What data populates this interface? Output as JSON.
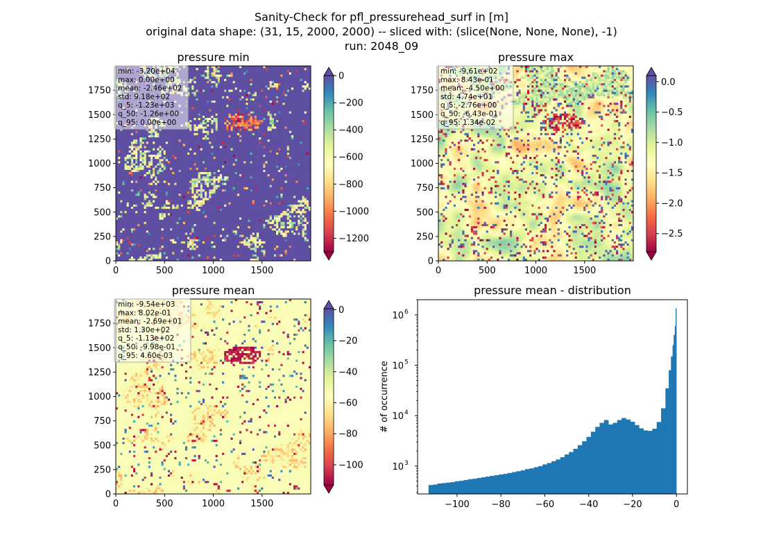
{
  "suptitle": {
    "line1": "Sanity-Check for pfl_pressurehead_surf in [m]",
    "line2": "original data shape: (31, 15, 2000, 2000) -- sliced with: (slice(None, None, None), -1)",
    "line3": "run: 2048_09"
  },
  "colormap": {
    "name": "Spectral",
    "stops": [
      "#9e0142",
      "#d53e4f",
      "#f46d43",
      "#fdae61",
      "#fee08b",
      "#ffffbf",
      "#e6f598",
      "#abdda4",
      "#66c2a5",
      "#3288bd",
      "#5e4fa2"
    ]
  },
  "panels": {
    "min": {
      "title": "pressure min",
      "stats": [
        "min: -3.20e+04",
        "max: 0.00e+00",
        "mean: -2.46e+02",
        "std: 9.18e+02",
        "q_5: -1.23e+03",
        "q_50: -1.26e+00",
        "q_95: 0.00e+00"
      ],
      "xticks": [
        "0",
        "500",
        "1000",
        "1500"
      ],
      "yticks": [
        "0",
        "250",
        "500",
        "750",
        "1000",
        "1250",
        "1500",
        "1750"
      ],
      "cbar_ticks": [
        "0",
        "−200",
        "−400",
        "−600",
        "−800",
        "−1000",
        "−1200"
      ]
    },
    "max": {
      "title": "pressure max",
      "stats": [
        "min: -9.61e+02",
        "max: 8.43e-01",
        "mean: -4.50e+00",
        "std: 4.74e+01",
        "q_5: -2.76e+00",
        "q_50: -6.43e-01",
        "q_95: 1.34e-02"
      ],
      "xticks": [
        "0",
        "500",
        "1000",
        "1500"
      ],
      "yticks": [
        "0",
        "250",
        "500",
        "750",
        "1000",
        "1250",
        "1500",
        "1750"
      ],
      "cbar_ticks": [
        "0.0",
        "−0.5",
        "−1.0",
        "−1.5",
        "−2.0",
        "−2.5"
      ]
    },
    "mean": {
      "title": "pressure mean",
      "stats": [
        "min: -9.54e+03",
        "max: 8.02e-01",
        "mean: -2.69e+01",
        "std: 1.30e+02",
        "q_5: -1.13e+02",
        "q_50: -9.98e-01",
        "q_95: 4.60e-03"
      ],
      "xticks": [
        "0",
        "500",
        "1000",
        "1500"
      ],
      "yticks": [
        "0",
        "250",
        "500",
        "750",
        "1000",
        "1250",
        "1500",
        "1750"
      ],
      "cbar_ticks": [
        "0",
        "−20",
        "−40",
        "−60",
        "−80",
        "−100"
      ]
    }
  },
  "histogram": {
    "title": "pressure mean - distribution",
    "ylabel": "# of occurrence",
    "xticks": [
      "−100",
      "−80",
      "−60",
      "−40",
      "−20",
      "0"
    ],
    "yticks": [
      "10",
      "10",
      "10",
      "10"
    ],
    "ytick_exp": [
      "3",
      "4",
      "5",
      "6"
    ],
    "bar_color": "#1f77b4"
  },
  "chart_data": [
    {
      "type": "heatmap",
      "title": "pressure min",
      "xlim": [
        0,
        2000
      ],
      "ylim": [
        0,
        2000
      ],
      "colorbar": {
        "vmin": -1300,
        "vmax": 0,
        "ticks": [
          0,
          -200,
          -400,
          -600,
          -800,
          -1000,
          -1200
        ],
        "extend": "both"
      },
      "background_level": 0
    },
    {
      "type": "heatmap",
      "title": "pressure max",
      "xlim": [
        0,
        2000
      ],
      "ylim": [
        0,
        2000
      ],
      "colorbar": {
        "vmin": -2.8,
        "vmax": 0.1,
        "ticks": [
          0.0,
          -0.5,
          -1.0,
          -1.5,
          -2.0,
          -2.5
        ],
        "extend": "both"
      }
    },
    {
      "type": "heatmap",
      "title": "pressure mean",
      "xlim": [
        0,
        2000
      ],
      "ylim": [
        0,
        2000
      ],
      "colorbar": {
        "vmin": -113,
        "vmax": 0.6,
        "ticks": [
          0,
          -20,
          -40,
          -60,
          -80,
          -100
        ],
        "extend": "both"
      }
    },
    {
      "type": "bar",
      "title": "pressure mean - distribution",
      "ylabel": "# of occurrence",
      "ylog": true,
      "xlim": [
        -118,
        5
      ],
      "ylim": [
        280,
        2000000
      ],
      "bin_range": [
        -113,
        0
      ],
      "x": [
        -112,
        -110,
        -108,
        -106,
        -104,
        -102,
        -100,
        -98,
        -96,
        -94,
        -92,
        -90,
        -88,
        -86,
        -84,
        -82,
        -80,
        -78,
        -76,
        -74,
        -72,
        -70,
        -68,
        -66,
        -64,
        -62,
        -60,
        -58,
        -56,
        -54,
        -52,
        -50,
        -48,
        -46,
        -44,
        -42,
        -40,
        -38,
        -36,
        -34,
        -32,
        -30,
        -28,
        -26,
        -24,
        -22,
        -20,
        -18,
        -16,
        -14,
        -12,
        -10,
        -8,
        -6,
        -4,
        -3,
        -2,
        -1.5,
        -1,
        -0.5,
        -0.2
      ],
      "y": [
        420,
        430,
        450,
        460,
        470,
        480,
        500,
        510,
        530,
        550,
        560,
        580,
        600,
        620,
        640,
        660,
        680,
        700,
        730,
        760,
        790,
        820,
        870,
        900,
        950,
        1000,
        1080,
        1150,
        1250,
        1350,
        1500,
        1700,
        1900,
        2200,
        2600,
        3100,
        3800,
        4800,
        6000,
        7200,
        8200,
        6700,
        7200,
        8200,
        9000,
        8400,
        7600,
        6500,
        5600,
        5100,
        5000,
        5500,
        7500,
        14000,
        35000,
        80000,
        150000,
        250000,
        400000,
        600000,
        1350000
      ]
    }
  ]
}
